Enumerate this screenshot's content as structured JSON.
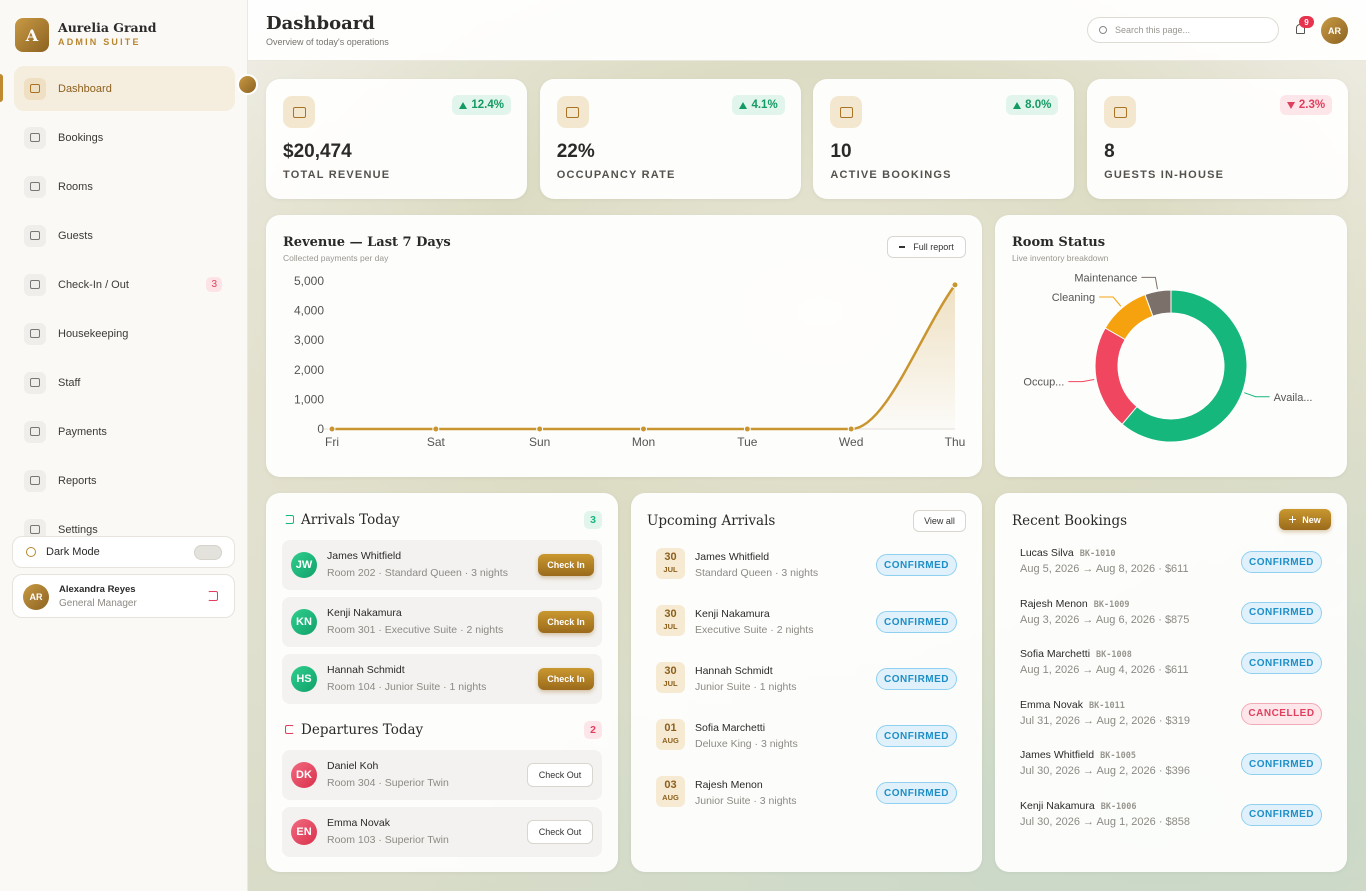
{
  "brand": {
    "logo": "A",
    "name": "Aurelia Grand",
    "tagline": "ADMIN SUITE"
  },
  "nav": [
    {
      "label": "Dashboard"
    },
    {
      "label": "Bookings"
    },
    {
      "label": "Rooms"
    },
    {
      "label": "Guests"
    },
    {
      "label": "Check-In / Out",
      "badge": 3
    },
    {
      "label": "Housekeeping"
    },
    {
      "label": "Staff"
    },
    {
      "label": "Payments"
    },
    {
      "label": "Reports"
    },
    {
      "label": "Settings"
    }
  ],
  "dark_mode": "Dark Mode",
  "user": {
    "initials": "AR",
    "name": "Alexandra Reyes",
    "role": "General Manager"
  },
  "header": {
    "title": "Dashboard",
    "subtitle": "Overview of today's operations",
    "search_placeholder": "Search this page...",
    "notifications": 9,
    "avatar": "AR"
  },
  "stats": [
    {
      "value": "$20,474",
      "label": "TOTAL REVENUE",
      "change": "12.4%",
      "trend": "up"
    },
    {
      "value": "22%",
      "label": "OCCUPANCY RATE",
      "change": "4.1%",
      "trend": "up"
    },
    {
      "value": "10",
      "label": "ACTIVE BOOKINGS",
      "change": "8.0%",
      "trend": "up"
    },
    {
      "value": "8",
      "label": "GUESTS IN-HOUSE",
      "change": "2.3%",
      "trend": "down"
    }
  ],
  "chart_data": [
    {
      "type": "line",
      "title": "Revenue — Last 7 Days",
      "subtitle": "Collected payments per day",
      "action": "Full report",
      "categories": [
        "Fri",
        "Sat",
        "Sun",
        "Mon",
        "Tue",
        "Wed",
        "Thu"
      ],
      "values": [
        0,
        0,
        0,
        0,
        0,
        0,
        4870
      ],
      "color": "#c9952e",
      "ylim": [
        0,
        5000
      ],
      "yticks": [
        0,
        {
          "value": 1000,
          "label": "1,000"
        },
        {
          "value": 2000,
          "label": "2,000"
        },
        {
          "value": 3000,
          "label": "3,000"
        },
        {
          "value": 4000,
          "label": "4,000"
        },
        {
          "value": 5000,
          "label": "5,000"
        }
      ],
      "grid": false
    },
    {
      "type": "pie",
      "title": "Room Status",
      "subtitle": "Live inventory breakdown",
      "categories": [
        "Availa...",
        "Occup...",
        "Cleaning",
        "Maintenance"
      ],
      "values": [
        11,
        4,
        2,
        1
      ],
      "colors": [
        "#16b77c",
        "#f0465f",
        "#f5a20e",
        "#7b706a"
      ],
      "donut": true
    }
  ],
  "arrivals": {
    "title": "Arrivals Today",
    "count": 3,
    "items": [
      {
        "initials": "JW",
        "name": "James Whitfield",
        "details": "Room 202 · Standard Queen · 3 nights",
        "action": "Check In"
      },
      {
        "initials": "KN",
        "name": "Kenji Nakamura",
        "details": "Room 301 · Executive Suite · 2 nights",
        "action": "Check In"
      },
      {
        "initials": "HS",
        "name": "Hannah Schmidt",
        "details": "Room 104 · Junior Suite · 1 nights",
        "action": "Check In"
      }
    ]
  },
  "departures": {
    "title": "Departures Today",
    "count": 2,
    "items": [
      {
        "initials": "DK",
        "name": "Daniel Koh",
        "details": "Room 304 · Superior Twin",
        "action": "Check Out"
      },
      {
        "initials": "EN",
        "name": "Emma Novak",
        "details": "Room 103 · Superior Twin",
        "action": "Check Out"
      }
    ]
  },
  "upcoming": {
    "title": "Upcoming Arrivals",
    "action": "View all",
    "items": [
      {
        "day": "30",
        "month": "JUL",
        "name": "James Whitfield",
        "details": "Standard Queen · 3 nights",
        "status": "CONFIRMED"
      },
      {
        "day": "30",
        "month": "JUL",
        "name": "Kenji Nakamura",
        "details": "Executive Suite · 2 nights",
        "status": "CONFIRMED"
      },
      {
        "day": "30",
        "month": "JUL",
        "name": "Hannah Schmidt",
        "details": "Junior Suite · 1 nights",
        "status": "CONFIRMED"
      },
      {
        "day": "01",
        "month": "AUG",
        "name": "Sofia Marchetti",
        "details": "Deluxe King · 3 nights",
        "status": "CONFIRMED"
      },
      {
        "day": "03",
        "month": "AUG",
        "name": "Rajesh Menon",
        "details": "Junior Suite · 3 nights",
        "status": "CONFIRMED"
      }
    ]
  },
  "recent": {
    "title": "Recent Bookings",
    "action": "New",
    "items": [
      {
        "name": "Lucas Silva",
        "id": "BK-1010",
        "details": "Aug 5, 2026 → Aug 8, 2026 · $611",
        "status": "CONFIRMED"
      },
      {
        "name": "Rajesh Menon",
        "id": "BK-1009",
        "details": "Aug 3, 2026 → Aug 6, 2026 · $875",
        "status": "CONFIRMED"
      },
      {
        "name": "Sofia Marchetti",
        "id": "BK-1008",
        "details": "Aug 1, 2026 → Aug 4, 2026 · $611",
        "status": "CONFIRMED"
      },
      {
        "name": "Emma Novak",
        "id": "BK-1011",
        "details": "Jul 31, 2026 → Aug 2, 2026 · $319",
        "status": "CANCELLED"
      },
      {
        "name": "James Whitfield",
        "id": "BK-1005",
        "details": "Jul 30, 2026 → Aug 2, 2026 · $396",
        "status": "CONFIRMED"
      },
      {
        "name": "Kenji Nakamura",
        "id": "BK-1006",
        "details": "Jul 30, 2026 → Aug 1, 2026 · $858",
        "status": "CONFIRMED"
      }
    ]
  }
}
